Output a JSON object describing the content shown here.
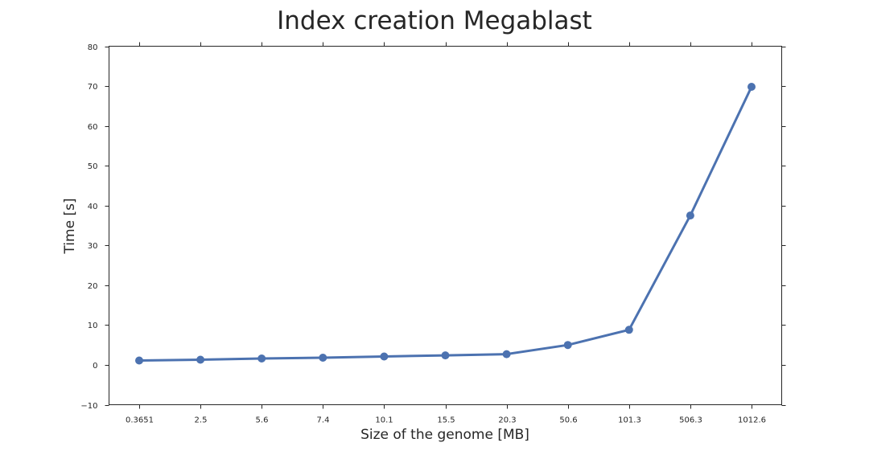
{
  "chart_data": {
    "type": "line",
    "title": "Index creation Megablast",
    "xlabel": "Size of the genome [MB]",
    "ylabel": "Time [s]",
    "categories": [
      "0.3651",
      "2.5",
      "5.6",
      "7.4",
      "10.1",
      "15.5",
      "20.3",
      "50.6",
      "101.3",
      "506.3",
      "1012.6"
    ],
    "series": [
      {
        "values": [
          1.1,
          1.3,
          1.6,
          1.8,
          2.1,
          2.4,
          2.7,
          5.0,
          8.8,
          37.5,
          69.8
        ],
        "color": "#4c72b0"
      }
    ],
    "ylim": [
      -10,
      80
    ],
    "yticks": [
      -10,
      0,
      10,
      20,
      30,
      40,
      50,
      60,
      70,
      80
    ],
    "grid": false,
    "legend": "none"
  }
}
